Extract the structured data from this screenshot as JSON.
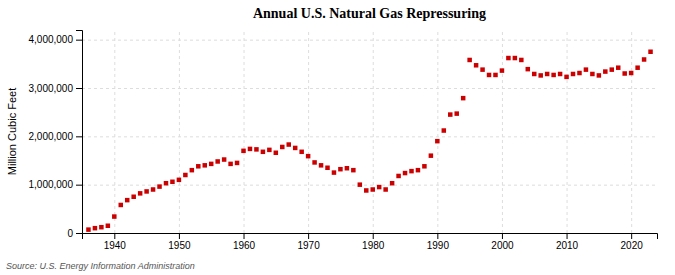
{
  "chart_data": {
    "type": "scatter",
    "title": "Annual U.S. Natural Gas Repressuring",
    "y_label": "Million Cubic Feet",
    "annotations": [
      "Source: U.S. Energy Information Administration"
    ],
    "color": "#cc0000",
    "marker": "square",
    "grid": true,
    "xlim": [
      1935,
      2024
    ],
    "ylim": [
      0,
      4200000
    ],
    "xticks": [
      1940,
      1950,
      1960,
      1970,
      1980,
      1990,
      2000,
      2010,
      2020
    ],
    "yticks": [
      0,
      {
        "value": 1000000,
        "label": "1,000,000"
      },
      {
        "value": 2000000,
        "label": "2,000,000"
      },
      {
        "value": 3000000,
        "label": "3,000,000"
      },
      {
        "value": 4000000,
        "label": "4,000,000"
      }
    ],
    "x": [
      1936,
      1937,
      1938,
      1939,
      1940,
      1941,
      1942,
      1943,
      1944,
      1945,
      1946,
      1947,
      1948,
      1949,
      1950,
      1951,
      1952,
      1953,
      1954,
      1955,
      1956,
      1957,
      1958,
      1959,
      1960,
      1961,
      1962,
      1963,
      1964,
      1965,
      1966,
      1967,
      1968,
      1969,
      1970,
      1971,
      1972,
      1973,
      1974,
      1975,
      1976,
      1977,
      1978,
      1979,
      1980,
      1981,
      1982,
      1983,
      1984,
      1985,
      1986,
      1987,
      1988,
      1989,
      1990,
      1991,
      1992,
      1993,
      1994,
      1995,
      1996,
      1997,
      1998,
      1999,
      2000,
      2001,
      2002,
      2003,
      2004,
      2005,
      2006,
      2007,
      2008,
      2009,
      2010,
      2011,
      2012,
      2013,
      2014,
      2015,
      2016,
      2017,
      2018,
      2019,
      2020,
      2021,
      2022,
      2023
    ],
    "values": [
      70000,
      100000,
      120000,
      150000,
      340000,
      580000,
      680000,
      750000,
      820000,
      860000,
      900000,
      960000,
      1030000,
      1060000,
      1100000,
      1200000,
      1300000,
      1380000,
      1400000,
      1430000,
      1480000,
      1520000,
      1430000,
      1450000,
      1700000,
      1740000,
      1730000,
      1680000,
      1720000,
      1660000,
      1780000,
      1830000,
      1760000,
      1680000,
      1590000,
      1460000,
      1400000,
      1350000,
      1250000,
      1320000,
      1340000,
      1300000,
      1000000,
      880000,
      900000,
      950000,
      900000,
      1030000,
      1180000,
      1240000,
      1280000,
      1300000,
      1380000,
      1600000,
      1900000,
      2120000,
      2450000,
      2470000,
      2790000,
      3580000,
      3470000,
      3380000,
      3270000,
      3270000,
      3360000,
      3620000,
      3620000,
      3580000,
      3390000,
      3290000,
      3260000,
      3290000,
      3270000,
      3290000,
      3230000,
      3290000,
      3310000,
      3380000,
      3290000,
      3260000,
      3340000,
      3380000,
      3420000,
      3300000,
      3310000,
      3420000,
      3590000,
      3750000
    ]
  }
}
